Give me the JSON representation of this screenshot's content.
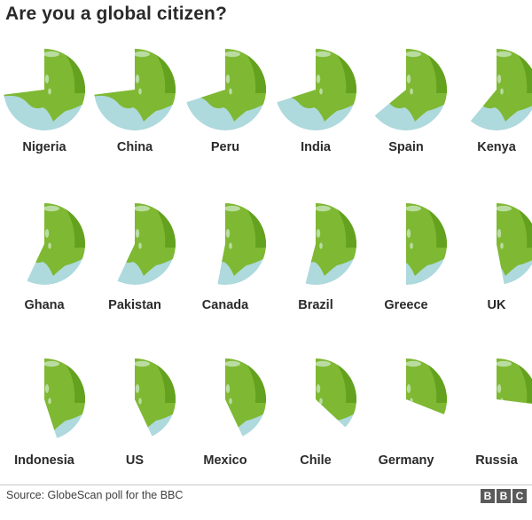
{
  "title": "Are you a global citizen?",
  "source": "Source: GlobeScan poll for the BBC",
  "logo_letters": [
    "B",
    "B",
    "C"
  ],
  "colors": {
    "ocean": "#aed9dd",
    "land": "#7fb832",
    "land_dark": "#64a11e",
    "highlight": "#b9dca0"
  },
  "chart_data": {
    "type": "pie",
    "title": "Are you a global citizen?",
    "unit": "share of globe shown (estimated %)",
    "categories": [
      "Nigeria",
      "China",
      "Peru",
      "India",
      "Spain",
      "Kenya",
      "Ghana",
      "Pakistan",
      "Canada",
      "Brazil",
      "Greece",
      "UK",
      "Indonesia",
      "US",
      "Mexico",
      "Chile",
      "Germany",
      "Russia"
    ],
    "values": [
      73,
      73,
      70,
      70,
      64,
      61,
      57,
      57,
      53,
      54,
      50,
      47,
      45,
      43,
      43,
      37,
      31,
      27
    ]
  }
}
